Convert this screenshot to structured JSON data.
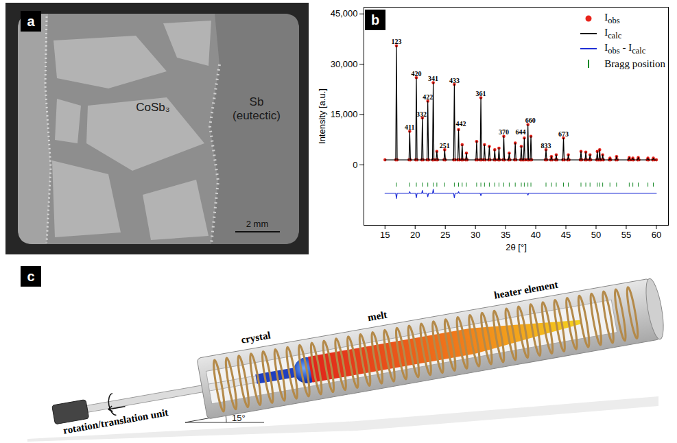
{
  "panel_a": {
    "panel_label": "a",
    "labels": [
      "CoSb₃",
      "Sb (eutectic)"
    ],
    "scale_bar": "2 mm"
  },
  "chart_data": {
    "panel_label": "b",
    "type": "line",
    "x_label": "2θ [°]",
    "y_label": "Intensity [a.u.]",
    "xlim": [
      11.5,
      62
    ],
    "xticks": [
      15,
      20,
      25,
      30,
      35,
      40,
      45,
      50,
      55,
      60
    ],
    "ylim": [
      -18000,
      47000
    ],
    "yticks": [
      0,
      {
        "value": 15000,
        "label": "15,000"
      },
      {
        "value": 30000,
        "label": "30,000"
      },
      {
        "value": 45000,
        "label": "45,000"
      }
    ],
    "legend": "top-right",
    "x": [
      15,
      16.78,
      16.9,
      17.02,
      18.98,
      19.1,
      19.22,
      20.08,
      20.2,
      20.32,
      21.08,
      21.2,
      21.32,
      21.98,
      22.1,
      22.22,
      22.88,
      23.0,
      23.12,
      23.48,
      23.6,
      23.72,
      24.78,
      24.9,
      25.02,
      26.38,
      26.5,
      26.62,
      27.08,
      27.2,
      27.32,
      27.68,
      27.8,
      27.92,
      28.38,
      28.5,
      28.62,
      30.08,
      30.2,
      30.32,
      30.78,
      30.9,
      31.02,
      31.38,
      31.5,
      31.62,
      32.18,
      32.3,
      32.42,
      33.08,
      33.2,
      33.32,
      33.78,
      33.9,
      34.02,
      34.58,
      34.7,
      34.82,
      35.48,
      35.6,
      35.72,
      36.48,
      36.6,
      36.72,
      37.48,
      37.6,
      37.72,
      37.98,
      38.1,
      38.22,
      38.58,
      38.7,
      38.82,
      39.08,
      39.2,
      39.32,
      41.58,
      41.7,
      41.82,
      42.48,
      42.6,
      42.72,
      43.28,
      43.4,
      43.52,
      44.48,
      44.6,
      44.72,
      45.28,
      45.4,
      45.52,
      47.38,
      47.5,
      47.62,
      48.18,
      48.3,
      48.42,
      48.88,
      49.0,
      49.12,
      50.08,
      50.2,
      50.32,
      50.48,
      50.6,
      50.72,
      50.98,
      51.1,
      51.22,
      52.18,
      52.3,
      52.42,
      53.28,
      53.4,
      53.52,
      55.38,
      55.5,
      55.62,
      55.98,
      56.1,
      56.22,
      56.88,
      57.0,
      57.12,
      58.48,
      58.6,
      58.72,
      59.38,
      59.5,
      59.62,
      60
    ],
    "series": [
      {
        "name": "Iobs",
        "type": "scatter",
        "marker": "circle",
        "color": "#e8231b",
        "values": [
          1500,
          1500,
          35500,
          1500,
          1500,
          10000,
          1500,
          1500,
          26000,
          1500,
          1500,
          14000,
          1500,
          1500,
          19000,
          1500,
          1500,
          24500,
          1500,
          1500,
          4000,
          1500,
          1500,
          4500,
          1500,
          1500,
          24000,
          1500,
          1500,
          10500,
          1500,
          1500,
          6000,
          1500,
          1500,
          3500,
          1500,
          1500,
          7000,
          1500,
          1500,
          20000,
          1500,
          1500,
          6000,
          1500,
          1500,
          5500,
          1500,
          1500,
          4500,
          1500,
          1500,
          5000,
          1500,
          1500,
          8500,
          1500,
          1500,
          3500,
          1500,
          1500,
          6500,
          1500,
          1500,
          5500,
          1500,
          1500,
          8000,
          1500,
          1500,
          12000,
          1500,
          1500,
          8500,
          1500,
          1500,
          4500,
          1500,
          1500,
          2500,
          1500,
          1500,
          3000,
          1500,
          1500,
          8000,
          1500,
          1500,
          3000,
          1500,
          1500,
          4000,
          1500,
          1500,
          3800,
          1500,
          1500,
          3000,
          1500,
          1500,
          4000,
          1500,
          1500,
          4500,
          1500,
          1500,
          3000,
          1500,
          1500,
          2000,
          1500,
          1500,
          2500,
          1500,
          1500,
          2200,
          1500,
          1500,
          2000,
          1500,
          1500,
          2200,
          1500,
          1500,
          2000,
          1500,
          1500,
          2000,
          1500,
          1500
        ]
      },
      {
        "name": "Icalc",
        "type": "line",
        "line_style": "solid",
        "color": "#000000",
        "values": [
          1500,
          1500,
          35500,
          1500,
          1500,
          10000,
          1500,
          1500,
          26000,
          1500,
          1500,
          14000,
          1500,
          1500,
          19000,
          1500,
          1500,
          24500,
          1500,
          1500,
          4000,
          1500,
          1500,
          4500,
          1500,
          1500,
          24000,
          1500,
          1500,
          10500,
          1500,
          1500,
          6000,
          1500,
          1500,
          3500,
          1500,
          1500,
          7000,
          1500,
          1500,
          20000,
          1500,
          1500,
          6000,
          1500,
          1500,
          5500,
          1500,
          1500,
          4500,
          1500,
          1500,
          5000,
          1500,
          1500,
          8500,
          1500,
          1500,
          3500,
          1500,
          1500,
          6500,
          1500,
          1500,
          5500,
          1500,
          1500,
          8000,
          1500,
          1500,
          12000,
          1500,
          1500,
          8500,
          1500,
          1500,
          4500,
          1500,
          1500,
          2500,
          1500,
          1500,
          3000,
          1500,
          1500,
          8000,
          1500,
          1500,
          3000,
          1500,
          1500,
          4000,
          1500,
          1500,
          3800,
          1500,
          1500,
          3000,
          1500,
          1500,
          4000,
          1500,
          1500,
          4500,
          1500,
          1500,
          3000,
          1500,
          1500,
          2000,
          1500,
          1500,
          2500,
          1500,
          1500,
          2200,
          1500,
          1500,
          2000,
          1500,
          1500,
          2200,
          1500,
          1500,
          2000,
          1500,
          1500,
          2000,
          1500,
          1500
        ]
      },
      {
        "name": "Iobs - Icalc",
        "type": "line",
        "line_style": "solid",
        "color": "#1f2fd6",
        "values": [
          -8500,
          -8500,
          -10000,
          -8500,
          -8500,
          -8000,
          -8500,
          -8500,
          -9800,
          -8500,
          -8500,
          -7600,
          -8500,
          -8500,
          -9500,
          -8500,
          -8500,
          -7300,
          -8500,
          -8500,
          -8500,
          -8500,
          -8500,
          -8500,
          -8500,
          -8500,
          -9800,
          -8500,
          -8500,
          -8000,
          -8500,
          -8500,
          -8500,
          -8500,
          -8500,
          -8500,
          -8500,
          -8500,
          -8500,
          -8500,
          -8500,
          -9200,
          -8500,
          -8500,
          -8500,
          -8500,
          -8500,
          -8500,
          -8500,
          -8500,
          -8500,
          -8500,
          -8500,
          -8500,
          -8500,
          -8500,
          -8500,
          -8500,
          -8500,
          -8500,
          -8500,
          -8500,
          -8500,
          -8500,
          -8500,
          -8500,
          -8500,
          -8500,
          -8500,
          -8500,
          -8500,
          -9000,
          -8500,
          -8500,
          -8500,
          -8500,
          -8500,
          -8500,
          -8500,
          -8500,
          -8500,
          -8500,
          -8500,
          -8500,
          -8500,
          -8500,
          -8500,
          -8500,
          -8500,
          -8500,
          -8500,
          -8500,
          -8500,
          -8500,
          -8500,
          -8500,
          -8500,
          -8500,
          -8500,
          -8500,
          -8500,
          -8500,
          -8500,
          -8500,
          -8500,
          -8500,
          -8500,
          -8500,
          -8500,
          -8500,
          -8500,
          -8500,
          -8500,
          -8500,
          -8500,
          -8500,
          -8500,
          -8500,
          -8500,
          -8500,
          -8500,
          -8500,
          -8500,
          -8500,
          -8500,
          -8500,
          -8500,
          -8500,
          -8500,
          -8500,
          -8500
        ]
      },
      {
        "name": "Bragg position",
        "type": "tick",
        "marker": "tick",
        "color": "#1a8a2a",
        "x": [
          16.9,
          19.1,
          20.2,
          21.2,
          22.1,
          23.0,
          23.6,
          24.9,
          26.5,
          27.2,
          27.8,
          28.5,
          30.2,
          30.9,
          31.5,
          32.3,
          33.2,
          33.9,
          34.7,
          35.6,
          36.6,
          37.6,
          38.1,
          38.7,
          39.2,
          41.7,
          42.6,
          43.4,
          44.6,
          45.4,
          47.5,
          48.3,
          49.0,
          50.2,
          50.6,
          51.1,
          52.3,
          53.4,
          55.5,
          56.1,
          57.0,
          58.6,
          59.5
        ],
        "values": [
          -6000,
          -6000,
          -6000,
          -6000,
          -6000,
          -6000,
          -6000,
          -6000,
          -6000,
          -6000,
          -6000,
          -6000,
          -6000,
          -6000,
          -6000,
          -6000,
          -6000,
          -6000,
          -6000,
          -6000,
          -6000,
          -6000,
          -6000,
          -6000,
          -6000,
          -6000,
          -6000,
          -6000,
          -6000,
          -6000,
          -6000,
          -6000,
          -6000,
          -6000,
          -6000,
          -6000,
          -6000,
          -6000,
          -6000,
          -6000,
          -6000,
          -6000,
          -6000
        ]
      }
    ],
    "annotations": [
      {
        "text": "123",
        "x": 16.9,
        "y": 36000
      },
      {
        "text": "411",
        "x": 19.1,
        "y": 10500
      },
      {
        "text": "420",
        "x": 20.2,
        "y": 26500
      },
      {
        "text": "332",
        "x": 21.05,
        "y": 14500
      },
      {
        "text": "422",
        "x": 22.1,
        "y": 19500
      },
      {
        "text": "341",
        "x": 23.0,
        "y": 25000
      },
      {
        "text": "251",
        "x": 24.9,
        "y": 5000
      },
      {
        "text": "433",
        "x": 26.5,
        "y": 24500
      },
      {
        "text": "442",
        "x": 27.6,
        "y": 11500
      },
      {
        "text": "361",
        "x": 30.9,
        "y": 20500
      },
      {
        "text": "370",
        "x": 34.7,
        "y": 9000
      },
      {
        "text": "644",
        "x": 37.5,
        "y": 9000
      },
      {
        "text": "660",
        "x": 39.1,
        "y": 12500
      },
      {
        "text": "833",
        "x": 41.7,
        "y": 5000
      },
      {
        "text": "673",
        "x": 44.6,
        "y": 8500
      }
    ]
  },
  "panel_c": {
    "panel_label": "c",
    "crystal": "crystal",
    "melt": "melt",
    "heater": "heater element",
    "unit": "rotation/translation unit",
    "angle": "15°"
  }
}
